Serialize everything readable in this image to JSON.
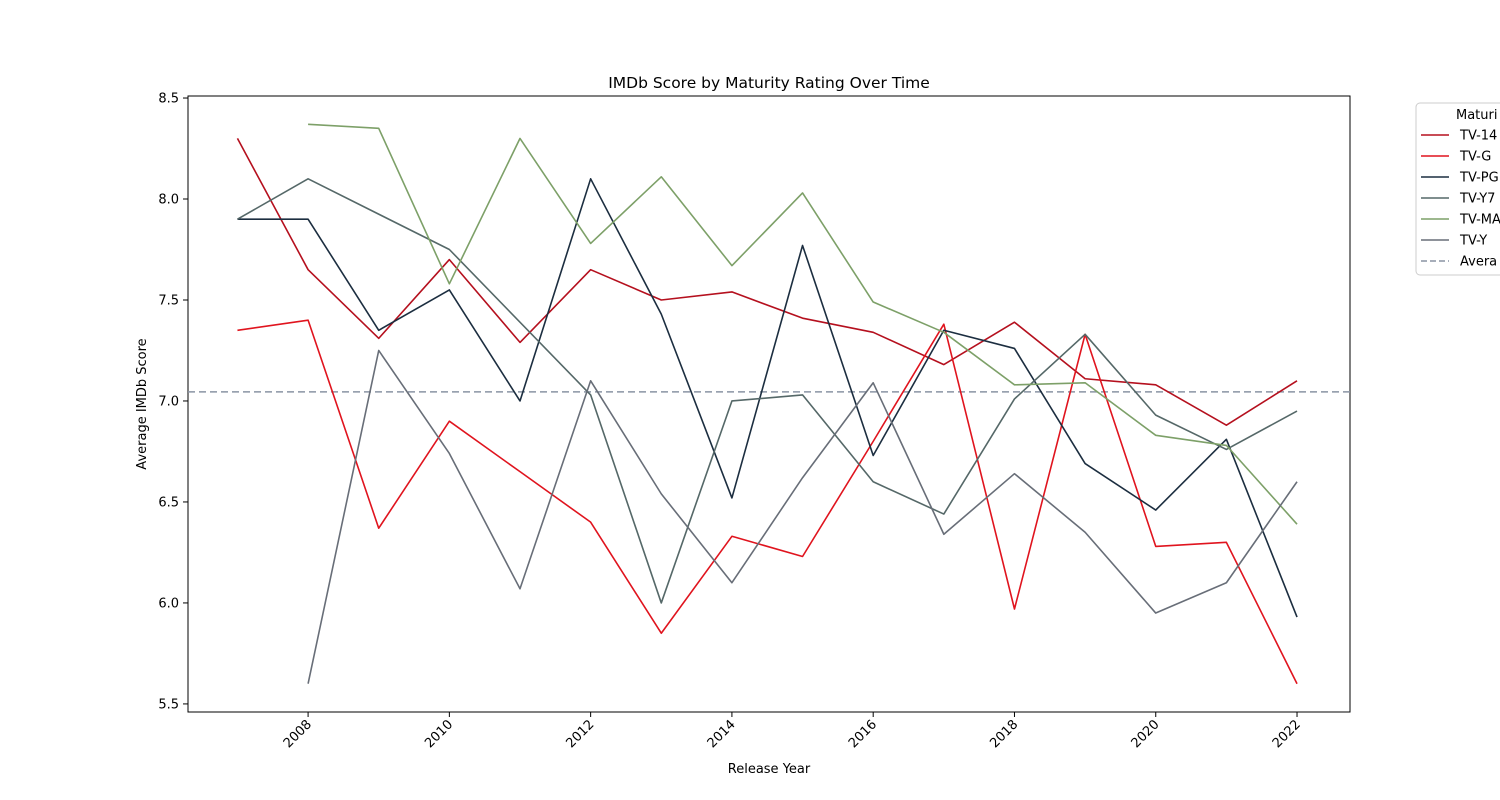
{
  "chart_data": {
    "type": "line",
    "title": "IMDb Score by Maturity Rating Over Time",
    "xlabel": "Release Year",
    "ylabel": "Average IMDb Score",
    "x": [
      2007,
      2008,
      2009,
      2010,
      2011,
      2012,
      2013,
      2014,
      2015,
      2016,
      2017,
      2018,
      2019,
      2020,
      2021,
      2022
    ],
    "xlim": [
      2006.3,
      2022.75
    ],
    "ylim": [
      5.46,
      8.51
    ],
    "xticks": [
      "2008",
      "2010",
      "2012",
      "2014",
      "2016",
      "2018",
      "2020",
      "2022"
    ],
    "yticks": [
      "5.5",
      "6.0",
      "6.5",
      "7.0",
      "7.5",
      "8.0",
      "8.5"
    ],
    "grid": false,
    "legend_position": "upper-right-outside",
    "legend_title": "Maturi",
    "series": [
      {
        "name": "TV-14",
        "color": "#b5101e",
        "values": [
          8.3,
          7.65,
          7.31,
          7.7,
          7.29,
          7.65,
          7.5,
          7.54,
          7.41,
          7.34,
          7.18,
          7.39,
          7.11,
          7.08,
          6.88,
          7.1
        ]
      },
      {
        "name": "TV-G",
        "color": "#e0141e",
        "values": [
          7.35,
          7.4,
          6.37,
          6.9,
          6.65,
          6.4,
          5.85,
          6.33,
          6.23,
          6.8,
          7.38,
          5.97,
          7.33,
          6.28,
          6.3,
          5.6
        ]
      },
      {
        "name": "TV-PG",
        "color": "#1c2e40",
        "values": [
          7.9,
          7.9,
          7.35,
          7.55,
          7.0,
          8.1,
          7.43,
          6.52,
          7.77,
          6.73,
          7.35,
          7.26,
          6.69,
          6.46,
          6.81,
          5.93
        ]
      },
      {
        "name": "TV-Y7",
        "color": "#556868",
        "values": [
          7.9,
          8.1,
          null,
          7.75,
          null,
          7.03,
          6.0,
          7.0,
          7.03,
          6.6,
          6.44,
          7.01,
          7.33,
          6.93,
          6.76,
          6.95
        ]
      },
      {
        "name": "TV-MA",
        "color": "#7da068",
        "values": [
          null,
          8.37,
          8.35,
          7.58,
          8.3,
          7.78,
          8.11,
          7.67,
          8.03,
          7.49,
          7.34,
          7.08,
          7.09,
          6.83,
          6.78,
          6.39
        ]
      },
      {
        "name": "TV-Y",
        "color": "#686e78",
        "values": [
          null,
          5.6,
          7.25,
          6.74,
          6.07,
          7.1,
          6.54,
          6.1,
          6.62,
          7.09,
          6.34,
          6.64,
          6.35,
          5.95,
          6.1,
          6.6
        ]
      }
    ],
    "average_line": {
      "name": "Avera",
      "value": 7.045,
      "color": "#8a94a4",
      "style": "dashed"
    }
  }
}
